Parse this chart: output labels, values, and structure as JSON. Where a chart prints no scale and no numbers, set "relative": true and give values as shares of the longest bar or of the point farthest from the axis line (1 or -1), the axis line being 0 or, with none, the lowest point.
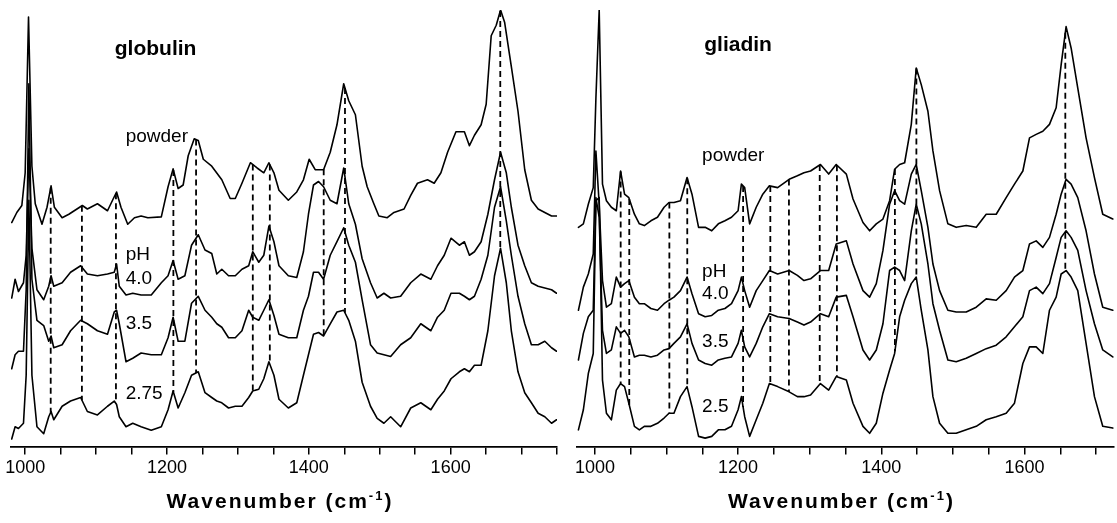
{
  "chart_data": [
    {
      "type": "line",
      "title": "globulin",
      "xlabel": "Wavenumber (cm$^{-1}$)",
      "relative": true,
      "legend": false,
      "grid": false,
      "marker": "none",
      "xlim": [
        980,
        1750
      ],
      "xticks": [
        1000,
        {
          "value": 1050,
          "label": null
        },
        {
          "value": 1100,
          "label": null
        },
        {
          "value": 1150,
          "label": null
        },
        1200,
        {
          "value": 1250,
          "label": null
        },
        {
          "value": 1300,
          "label": null
        },
        {
          "value": 1350,
          "label": null
        },
        1400,
        {
          "value": 1450,
          "label": null
        },
        {
          "value": 1500,
          "label": null
        },
        {
          "value": 1550,
          "label": null
        },
        1600,
        {
          "value": 1650,
          "label": null
        },
        {
          "value": 1700,
          "label": null
        },
        {
          "value": 1750,
          "label": null
        }
      ],
      "annotations": [
        "pH"
      ],
      "ref_lines": [
        {
          "axis": "x",
          "value": 1036,
          "line_style": "dashed",
          "color": "#000000"
        },
        {
          "axis": "x",
          "value": 1080,
          "line_style": "dashed",
          "color": "#000000"
        },
        {
          "axis": "x",
          "value": 1128,
          "line_style": "dashed",
          "color": "#000000"
        },
        {
          "axis": "x",
          "value": 1209,
          "line_style": "dashed",
          "color": "#000000"
        },
        {
          "axis": "x",
          "value": 1241,
          "line_style": "dashed",
          "color": "#000000"
        },
        {
          "axis": "x",
          "value": 1321,
          "line_style": "dashed",
          "color": "#000000"
        },
        {
          "axis": "x",
          "value": 1345,
          "line_style": "dashed",
          "color": "#000000"
        },
        {
          "axis": "x",
          "value": 1421,
          "line_style": "dashed",
          "color": "#000000"
        },
        {
          "axis": "x",
          "value": 1451,
          "line_style": "dashed",
          "color": "#000000"
        },
        {
          "axis": "x",
          "value": 1670,
          "line_style": "dashed",
          "color": "#000000"
        }
      ],
      "series": [
        {
          "name": "powder",
          "color": "#000000",
          "x": [
            981.0,
            988.2,
            995.3,
            1000,
            1004.7,
            1009.5,
            1014.2,
            1023.7,
            1030.8,
            1036.5,
            1041.2,
            1052.1,
            1061.6,
            1080.6,
            1087.7,
            1101.9,
            1116.1,
            1123.2,
            1128.9,
            1135.1,
            1144.6,
            1154.1,
            1163.5,
            1173.0,
            1192.0,
            1201.5,
            1208.6,
            1215.7,
            1222.8,
            1229.9,
            1238.4,
            1244.1,
            1251.2,
            1263.1,
            1277.3,
            1289.1,
            1296.3,
            1305.7,
            1317.6,
            1327.1,
            1336.5,
            1343.7,
            1350.8,
            1357.9,
            1371.1,
            1383.0,
            1392.4,
            1400.5,
            1409.0,
            1420.8,
            1430.2,
            1439.7,
            1449.2,
            1456.3,
            1465.7,
            1475.2,
            1482.3,
            1491.7,
            1498.8,
            1510.6,
            1520.1,
            1534.3,
            1543.7,
            1553.2,
            1567.4,
            1576.8,
            1586.3,
            1595.7,
            1607.5,
            1619.4,
            1626.5,
            1633.6,
            1643.0,
            1650.1,
            1657.2,
            1664.3,
            1670.4,
            1676.1,
            1685.6,
            1695.0,
            1704.5,
            1713.9,
            1723.4,
            1732.8,
            1742.3,
            1749.4
          ],
          "values": [
            0.513,
            0.536,
            0.552,
            0.627,
            0.984,
            0.642,
            0.556,
            0.509,
            0.548,
            0.597,
            0.548,
            0.524,
            0.532,
            0.552,
            0.544,
            0.556,
            0.54,
            0.564,
            0.583,
            0.548,
            0.509,
            0.524,
            0.528,
            0.524,
            0.526,
            0.595,
            0.636,
            0.591,
            0.599,
            0.666,
            0.705,
            0.701,
            0.658,
            0.642,
            0.611,
            0.568,
            0.568,
            0.603,
            0.65,
            0.638,
            0.627,
            0.65,
            0.627,
            0.587,
            0.564,
            0.583,
            0.611,
            0.658,
            0.634,
            0.634,
            0.674,
            0.737,
            0.831,
            0.792,
            0.76,
            0.642,
            0.595,
            0.556,
            0.528,
            0.524,
            0.536,
            0.544,
            0.575,
            0.603,
            0.611,
            0.603,
            0.627,
            0.674,
            0.721,
            0.721,
            0.689,
            0.713,
            0.737,
            0.784,
            0.941,
            0.965,
            1,
            0.972,
            0.87,
            0.768,
            0.634,
            0.564,
            0.544,
            0.536,
            0.528,
            0.528
          ]
        },
        {
          "name": "4.0",
          "color": "#000000",
          "x": [
            981.0,
            985.8,
            990.5,
            997.6,
            1001.4,
            1005.2,
            1009.5,
            1016.6,
            1026.1,
            1033.2,
            1036.5,
            1040.3,
            1052.1,
            1064.0,
            1078.2,
            1087.7,
            1101.9,
            1116.1,
            1125.6,
            1128.9,
            1132.7,
            1142.2,
            1151.7,
            1163.5,
            1177.8,
            1192.0,
            1201.5,
            1208.6,
            1215.7,
            1225.2,
            1234.6,
            1244.1,
            1253.6,
            1263.1,
            1270.2,
            1277.3,
            1286.8,
            1296.3,
            1305.7,
            1315.2,
            1320.9,
            1329.4,
            1336.5,
            1343.7,
            1350.8,
            1357.9,
            1371.1,
            1383.0,
            1392.4,
            1399.5,
            1406.6,
            1413.7,
            1420.8,
            1430.2,
            1439.7,
            1449.2,
            1456.3,
            1465.7,
            1475.2,
            1487.0,
            1496.4,
            1505.9,
            1515.4,
            1529.5,
            1543.7,
            1557.9,
            1572.1,
            1581.5,
            1591.0,
            1600.5,
            1612.3,
            1619.4,
            1626.5,
            1633.6,
            1643.0,
            1652.5,
            1661.9,
            1670.4,
            1678.5,
            1685.6,
            1695.0,
            1704.5,
            1713.9,
            1723.4,
            1732.8,
            1742.3,
            1749.4
          ],
          "values": [
            0.34,
            0.383,
            0.355,
            0.375,
            0.438,
            0.682,
            0.454,
            0.359,
            0.336,
            0.367,
            0.391,
            0.367,
            0.375,
            0.399,
            0.414,
            0.395,
            0.391,
            0.395,
            0.399,
            0.418,
            0.367,
            0.347,
            0.351,
            0.347,
            0.347,
            0.375,
            0.391,
            0.426,
            0.383,
            0.391,
            0.461,
            0.485,
            0.45,
            0.442,
            0.395,
            0.406,
            0.391,
            0.391,
            0.406,
            0.414,
            0.446,
            0.422,
            0.438,
            0.505,
            0.469,
            0.414,
            0.391,
            0.387,
            0.446,
            0.532,
            0.599,
            0.607,
            0.595,
            0.564,
            0.556,
            0.638,
            0.556,
            0.509,
            0.43,
            0.375,
            0.34,
            0.351,
            0.34,
            0.344,
            0.375,
            0.395,
            0.383,
            0.414,
            0.438,
            0.477,
            0.461,
            0.469,
            0.438,
            0.446,
            0.469,
            0.532,
            0.611,
            0.674,
            0.627,
            0.548,
            0.461,
            0.414,
            0.375,
            0.367,
            0.363,
            0.359,
            0.351
          ]
        },
        {
          "name": "3.5",
          "color": "#000000",
          "x": [
            981.0,
            985.8,
            990.5,
            997.6,
            1001.4,
            1005.2,
            1009.5,
            1016.6,
            1026.1,
            1033.2,
            1036.5,
            1040.3,
            1052.1,
            1064.0,
            1078.2,
            1087.7,
            1101.9,
            1116.1,
            1125.6,
            1128.9,
            1132.7,
            1142.2,
            1151.7,
            1163.5,
            1177.8,
            1192.0,
            1201.5,
            1208.6,
            1215.7,
            1225.2,
            1234.6,
            1244.1,
            1253.6,
            1263.1,
            1270.2,
            1277.3,
            1286.8,
            1296.3,
            1305.7,
            1315.2,
            1320.9,
            1329.4,
            1336.5,
            1343.7,
            1350.8,
            1357.9,
            1371.1,
            1383.0,
            1392.4,
            1399.5,
            1406.6,
            1413.7,
            1420.8,
            1430.2,
            1439.7,
            1449.2,
            1456.3,
            1465.7,
            1475.2,
            1487.0,
            1496.4,
            1505.9,
            1515.4,
            1529.5,
            1543.7,
            1557.9,
            1572.1,
            1581.5,
            1591.0,
            1600.5,
            1612.3,
            1619.4,
            1626.5,
            1633.6,
            1643.0,
            1652.5,
            1661.9,
            1670.4,
            1678.5,
            1685.6,
            1695.0,
            1704.5,
            1713.9,
            1723.4,
            1732.8,
            1742.3,
            1749.4
          ],
          "values": [
            0.178,
            0.21,
            0.218,
            0.218,
            0.359,
            0.831,
            0.383,
            0.289,
            0.277,
            0.241,
            0.253,
            0.226,
            0.233,
            0.265,
            0.289,
            0.281,
            0.265,
            0.257,
            0.308,
            0.312,
            0.281,
            0.194,
            0.202,
            0.214,
            0.21,
            0.21,
            0.249,
            0.296,
            0.241,
            0.241,
            0.328,
            0.344,
            0.312,
            0.296,
            0.281,
            0.273,
            0.249,
            0.249,
            0.265,
            0.312,
            0.296,
            0.289,
            0.312,
            0.336,
            0.3,
            0.257,
            0.249,
            0.249,
            0.312,
            0.344,
            0.399,
            0.399,
            0.383,
            0.438,
            0.469,
            0.501,
            0.461,
            0.422,
            0.336,
            0.233,
            0.214,
            0.21,
            0.206,
            0.233,
            0.249,
            0.281,
            0.265,
            0.296,
            0.312,
            0.351,
            0.351,
            0.344,
            0.336,
            0.344,
            0.383,
            0.438,
            0.548,
            0.595,
            0.517,
            0.438,
            0.344,
            0.281,
            0.233,
            0.233,
            0.241,
            0.226,
            0.218
          ]
        },
        {
          "name": "2.75",
          "color": "#000000",
          "x": [
            981.0,
            985.8,
            990.5,
            997.6,
            1001.4,
            1005.2,
            1009.5,
            1016.6,
            1026.1,
            1033.2,
            1036.5,
            1040.3,
            1052.1,
            1064.0,
            1078.2,
            1087.7,
            1101.9,
            1116.1,
            1125.6,
            1128.9,
            1132.7,
            1142.2,
            1151.7,
            1163.5,
            1177.8,
            1192.0,
            1201.5,
            1208.6,
            1215.7,
            1225.2,
            1234.6,
            1244.1,
            1253.6,
            1263.1,
            1270.2,
            1277.3,
            1286.8,
            1296.3,
            1305.7,
            1315.2,
            1320.9,
            1329.4,
            1336.5,
            1343.7,
            1350.8,
            1357.9,
            1371.1,
            1383.0,
            1392.4,
            1399.5,
            1406.6,
            1413.7,
            1420.8,
            1430.2,
            1439.7,
            1449.2,
            1456.3,
            1465.7,
            1475.2,
            1487.0,
            1496.4,
            1505.9,
            1515.4,
            1529.5,
            1543.7,
            1557.9,
            1572.1,
            1581.5,
            1591.0,
            1600.5,
            1612.3,
            1619.4,
            1626.5,
            1633.6,
            1643.0,
            1652.5,
            1661.9,
            1670.4,
            1678.5,
            1685.6,
            1695.0,
            1704.5,
            1713.9,
            1723.4,
            1732.8,
            1742.3,
            1749.4
          ],
          "values": [
            0.017,
            0.045,
            0.041,
            0.053,
            0.163,
            0.564,
            0.163,
            0.045,
            0.029,
            0.068,
            0.08,
            0.061,
            0.092,
            0.104,
            0.112,
            0.08,
            0.072,
            0.092,
            0.104,
            0.096,
            0.068,
            0.045,
            0.053,
            0.045,
            0.037,
            0.045,
            0.084,
            0.127,
            0.088,
            0.123,
            0.163,
            0.171,
            0.123,
            0.112,
            0.104,
            0.1,
            0.088,
            0.092,
            0.092,
            0.112,
            0.127,
            0.131,
            0.155,
            0.194,
            0.163,
            0.108,
            0.088,
            0.1,
            0.163,
            0.21,
            0.257,
            0.261,
            0.253,
            0.281,
            0.308,
            0.312,
            0.289,
            0.241,
            0.147,
            0.092,
            0.064,
            0.053,
            0.068,
            0.045,
            0.088,
            0.1,
            0.084,
            0.108,
            0.127,
            0.155,
            0.171,
            0.178,
            0.171,
            0.186,
            0.186,
            0.265,
            0.391,
            0.454,
            0.375,
            0.265,
            0.171,
            0.123,
            0.1,
            0.076,
            0.068,
            0.053,
            0.061
          ]
        }
      ]
    },
    {
      "type": "line",
      "title": "gliadin",
      "xlabel": "Wavenumber (cm$^{-1}$)",
      "relative": true,
      "legend": false,
      "grid": false,
      "marker": "none",
      "xlim": [
        975,
        1725
      ],
      "xticks": [
        1000,
        {
          "value": 1050,
          "label": null
        },
        {
          "value": 1100,
          "label": null
        },
        {
          "value": 1150,
          "label": null
        },
        1200,
        {
          "value": 1250,
          "label": null
        },
        {
          "value": 1300,
          "label": null
        },
        {
          "value": 1350,
          "label": null
        },
        1400,
        {
          "value": 1450,
          "label": null
        },
        {
          "value": 1500,
          "label": null
        },
        {
          "value": 1550,
          "label": null
        },
        1600,
        {
          "value": 1650,
          "label": null
        },
        {
          "value": 1700,
          "label": null
        }
      ],
      "annotations": [
        "pH"
      ],
      "ref_lines": [
        {
          "axis": "x",
          "value": 1036,
          "line_style": "dashed",
          "color": "#000000"
        },
        {
          "axis": "x",
          "value": 1048,
          "line_style": "dashed",
          "color": "#000000"
        },
        {
          "axis": "x",
          "value": 1104,
          "line_style": "dashed",
          "color": "#000000"
        },
        {
          "axis": "x",
          "value": 1129,
          "line_style": "dashed",
          "color": "#000000"
        },
        {
          "axis": "x",
          "value": 1207,
          "line_style": "dashed",
          "color": "#000000"
        },
        {
          "axis": "x",
          "value": 1245,
          "line_style": "dashed",
          "color": "#000000"
        },
        {
          "axis": "x",
          "value": 1271,
          "line_style": "dashed",
          "color": "#000000"
        },
        {
          "axis": "x",
          "value": 1314,
          "line_style": "dashed",
          "color": "#000000"
        },
        {
          "axis": "x",
          "value": 1338,
          "line_style": "dashed",
          "color": "#000000"
        },
        {
          "axis": "x",
          "value": 1419,
          "line_style": "dashed",
          "color": "#000000"
        },
        {
          "axis": "x",
          "value": 1449,
          "line_style": "dashed",
          "color": "#000000"
        },
        {
          "axis": "x",
          "value": 1657,
          "line_style": "dashed",
          "color": "#000000"
        }
      ],
      "series": [
        {
          "name": "powder",
          "color": "#000000",
          "x": [
            977.0,
            983.9,
            990.8,
            997.7,
            1001.4,
            1006.0,
            1010.6,
            1016.1,
            1023.0,
            1029.9,
            1035.9,
            1041.4,
            1047.4,
            1055.2,
            1062.1,
            1069.0,
            1078.2,
            1087.4,
            1096.6,
            1103.5,
            1110.4,
            1119.5,
            1128.7,
            1135.6,
            1144.8,
            1154.0,
            1163.2,
            1172.4,
            1181.6,
            1190.8,
            1200.0,
            1204.6,
            1209.2,
            1216.1,
            1225.3,
            1234.5,
            1243.7,
            1255.2,
            1271.3,
            1282.8,
            1292.0,
            1301.2,
            1315.0,
            1326.5,
            1337.0,
            1351.2,
            1360.5,
            1374.4,
            1383.7,
            1393.0,
            1402.3,
            1411.6,
            1418.6,
            1425.6,
            1432.6,
            1441.9,
            1448.8,
            1455.8,
            1465.1,
            1472.1,
            1481.4,
            1493.0,
            1504.6,
            1518.6,
            1532.6,
            1546.5,
            1560.5,
            1574.4,
            1586.0,
            1597.7,
            1607.0,
            1616.3,
            1625.6,
            1634.9,
            1644.2,
            1651.2,
            1658.1,
            1665.1,
            1674.4,
            1686.0,
            1697.7,
            1709.3,
            1723.3
          ],
          "values": [
            0.502,
            0.51,
            0.555,
            0.593,
            0.798,
            1,
            0.601,
            0.563,
            0.548,
            0.54,
            0.631,
            0.578,
            0.57,
            0.532,
            0.51,
            0.506,
            0.517,
            0.525,
            0.548,
            0.559,
            0.559,
            0.563,
            0.616,
            0.578,
            0.502,
            0.502,
            0.494,
            0.51,
            0.517,
            0.525,
            0.54,
            0.601,
            0.593,
            0.51,
            0.548,
            0.578,
            0.597,
            0.593,
            0.612,
            0.62,
            0.627,
            0.631,
            0.646,
            0.624,
            0.646,
            0.624,
            0.567,
            0.513,
            0.494,
            0.51,
            0.521,
            0.563,
            0.635,
            0.646,
            0.65,
            0.738,
            0.867,
            0.829,
            0.768,
            0.677,
            0.586,
            0.51,
            0.502,
            0.506,
            0.502,
            0.532,
            0.532,
            0.57,
            0.601,
            0.631,
            0.707,
            0.715,
            0.722,
            0.738,
            0.776,
            0.875,
            0.962,
            0.913,
            0.821,
            0.707,
            0.616,
            0.532,
            0.521
          ]
        },
        {
          "name": "4.0",
          "color": "#000000",
          "x": [
            977.0,
            983.9,
            990.8,
            997.7,
            1001.4,
            1006.0,
            1010.6,
            1016.1,
            1023.0,
            1029.9,
            1035.9,
            1041.4,
            1047.4,
            1055.2,
            1062.1,
            1069.0,
            1078.2,
            1087.4,
            1096.6,
            1103.5,
            1110.4,
            1119.5,
            1128.7,
            1135.6,
            1144.8,
            1154.0,
            1163.2,
            1172.4,
            1181.6,
            1190.8,
            1200.0,
            1204.6,
            1209.2,
            1216.1,
            1225.3,
            1234.5,
            1243.7,
            1255.2,
            1271.3,
            1282.8,
            1292.0,
            1301.2,
            1315.0,
            1326.5,
            1337.0,
            1351.2,
            1360.5,
            1374.4,
            1383.7,
            1393.0,
            1402.3,
            1411.6,
            1418.6,
            1425.6,
            1432.6,
            1441.9,
            1448.8,
            1455.8,
            1465.1,
            1472.1,
            1481.4,
            1493.0,
            1504.6,
            1518.6,
            1532.6,
            1546.5,
            1560.5,
            1574.4,
            1586.0,
            1597.7,
            1607.0,
            1616.3,
            1625.6,
            1634.9,
            1644.2,
            1651.2,
            1658.1,
            1665.1,
            1674.4,
            1686.0,
            1697.7,
            1709.3,
            1723.3
          ],
          "values": [
            0.312,
            0.365,
            0.395,
            0.441,
            0.677,
            0.555,
            0.38,
            0.319,
            0.327,
            0.388,
            0.365,
            0.373,
            0.38,
            0.342,
            0.327,
            0.327,
            0.316,
            0.312,
            0.327,
            0.335,
            0.342,
            0.357,
            0.388,
            0.35,
            0.304,
            0.297,
            0.3,
            0.312,
            0.316,
            0.327,
            0.357,
            0.388,
            0.357,
            0.319,
            0.357,
            0.38,
            0.403,
            0.395,
            0.403,
            0.392,
            0.38,
            0.384,
            0.403,
            0.403,
            0.464,
            0.471,
            0.418,
            0.357,
            0.342,
            0.373,
            0.449,
            0.555,
            0.586,
            0.563,
            0.555,
            0.624,
            0.646,
            0.586,
            0.502,
            0.418,
            0.357,
            0.312,
            0.308,
            0.308,
            0.319,
            0.338,
            0.335,
            0.357,
            0.388,
            0.403,
            0.464,
            0.471,
            0.456,
            0.479,
            0.532,
            0.578,
            0.612,
            0.601,
            0.57,
            0.494,
            0.395,
            0.319,
            0.312
          ]
        },
        {
          "name": "3.5",
          "color": "#000000",
          "x": [
            977.0,
            983.9,
            990.8,
            997.7,
            1001.4,
            1006.0,
            1010.6,
            1016.1,
            1023.0,
            1029.9,
            1035.9,
            1041.4,
            1047.4,
            1055.2,
            1062.1,
            1069.0,
            1078.2,
            1087.4,
            1096.6,
            1103.5,
            1110.4,
            1119.5,
            1128.7,
            1135.6,
            1144.8,
            1154.0,
            1163.2,
            1172.4,
            1181.6,
            1190.8,
            1200.0,
            1204.6,
            1209.2,
            1216.1,
            1225.3,
            1234.5,
            1243.7,
            1255.2,
            1271.3,
            1282.8,
            1292.0,
            1301.2,
            1315.0,
            1326.5,
            1337.0,
            1351.2,
            1360.5,
            1374.4,
            1383.7,
            1393.0,
            1402.3,
            1411.6,
            1418.6,
            1425.6,
            1432.6,
            1441.9,
            1448.8,
            1455.8,
            1465.1,
            1472.1,
            1481.4,
            1493.0,
            1504.6,
            1518.6,
            1532.6,
            1546.5,
            1560.5,
            1574.4,
            1586.0,
            1597.7,
            1607.0,
            1616.3,
            1625.6,
            1634.9,
            1644.2,
            1651.2,
            1658.1,
            1665.1,
            1674.4,
            1686.0,
            1697.7,
            1709.3,
            1723.3
          ],
          "values": [
            0.198,
            0.259,
            0.297,
            0.312,
            0.57,
            0.525,
            0.266,
            0.213,
            0.221,
            0.274,
            0.259,
            0.266,
            0.251,
            0.205,
            0.209,
            0.209,
            0.205,
            0.209,
            0.221,
            0.224,
            0.236,
            0.251,
            0.281,
            0.236,
            0.198,
            0.19,
            0.186,
            0.198,
            0.202,
            0.205,
            0.236,
            0.266,
            0.228,
            0.205,
            0.236,
            0.274,
            0.304,
            0.297,
            0.293,
            0.285,
            0.278,
            0.285,
            0.304,
            0.297,
            0.342,
            0.346,
            0.297,
            0.221,
            0.198,
            0.221,
            0.281,
            0.403,
            0.411,
            0.403,
            0.38,
            0.494,
            0.555,
            0.51,
            0.418,
            0.327,
            0.266,
            0.198,
            0.194,
            0.202,
            0.213,
            0.224,
            0.232,
            0.251,
            0.274,
            0.297,
            0.357,
            0.365,
            0.35,
            0.373,
            0.433,
            0.479,
            0.494,
            0.479,
            0.449,
            0.357,
            0.281,
            0.221,
            0.205
          ]
        },
        {
          "name": "2.5",
          "color": "#000000",
          "x": [
            977.0,
            983.9,
            990.8,
            997.7,
            1001.4,
            1006.0,
            1010.6,
            1016.1,
            1023.0,
            1029.9,
            1035.9,
            1041.4,
            1047.4,
            1055.2,
            1062.1,
            1069.0,
            1078.2,
            1087.4,
            1096.6,
            1103.5,
            1110.4,
            1119.5,
            1128.7,
            1135.6,
            1144.8,
            1154.0,
            1163.2,
            1172.4,
            1181.6,
            1190.8,
            1200.0,
            1204.6,
            1209.2,
            1216.1,
            1225.3,
            1234.5,
            1243.7,
            1255.2,
            1271.3,
            1282.8,
            1292.0,
            1301.2,
            1315.0,
            1326.5,
            1337.0,
            1351.2,
            1360.5,
            1374.4,
            1383.7,
            1393.0,
            1402.3,
            1411.6,
            1418.6,
            1425.6,
            1432.6,
            1441.9,
            1448.8,
            1455.8,
            1465.1,
            1472.1,
            1481.4,
            1493.0,
            1504.6,
            1518.6,
            1532.6,
            1546.5,
            1560.5,
            1574.4,
            1586.0,
            1597.7,
            1607.0,
            1616.3,
            1625.6,
            1634.9,
            1644.2,
            1651.2,
            1658.1,
            1665.1,
            1674.4,
            1686.0,
            1697.7,
            1709.3,
            1723.3
          ],
          "values": [
            0.038,
            0.084,
            0.167,
            0.213,
            0.563,
            0.57,
            0.152,
            0.076,
            0.061,
            0.129,
            0.144,
            0.137,
            0.099,
            0.046,
            0.038,
            0.046,
            0.046,
            0.053,
            0.065,
            0.076,
            0.076,
            0.114,
            0.137,
            0.091,
            0.023,
            0.019,
            0.023,
            0.038,
            0.038,
            0.046,
            0.084,
            0.114,
            0.068,
            0.023,
            0.061,
            0.099,
            0.144,
            0.137,
            0.125,
            0.114,
            0.114,
            0.118,
            0.144,
            0.129,
            0.16,
            0.152,
            0.099,
            0.046,
            0.03,
            0.053,
            0.122,
            0.175,
            0.213,
            0.297,
            0.335,
            0.373,
            0.388,
            0.312,
            0.221,
            0.114,
            0.053,
            0.03,
            0.03,
            0.038,
            0.046,
            0.061,
            0.068,
            0.076,
            0.099,
            0.19,
            0.228,
            0.228,
            0.213,
            0.312,
            0.342,
            0.395,
            0.403,
            0.388,
            0.357,
            0.236,
            0.114,
            0.046,
            0.042
          ]
        }
      ]
    }
  ]
}
